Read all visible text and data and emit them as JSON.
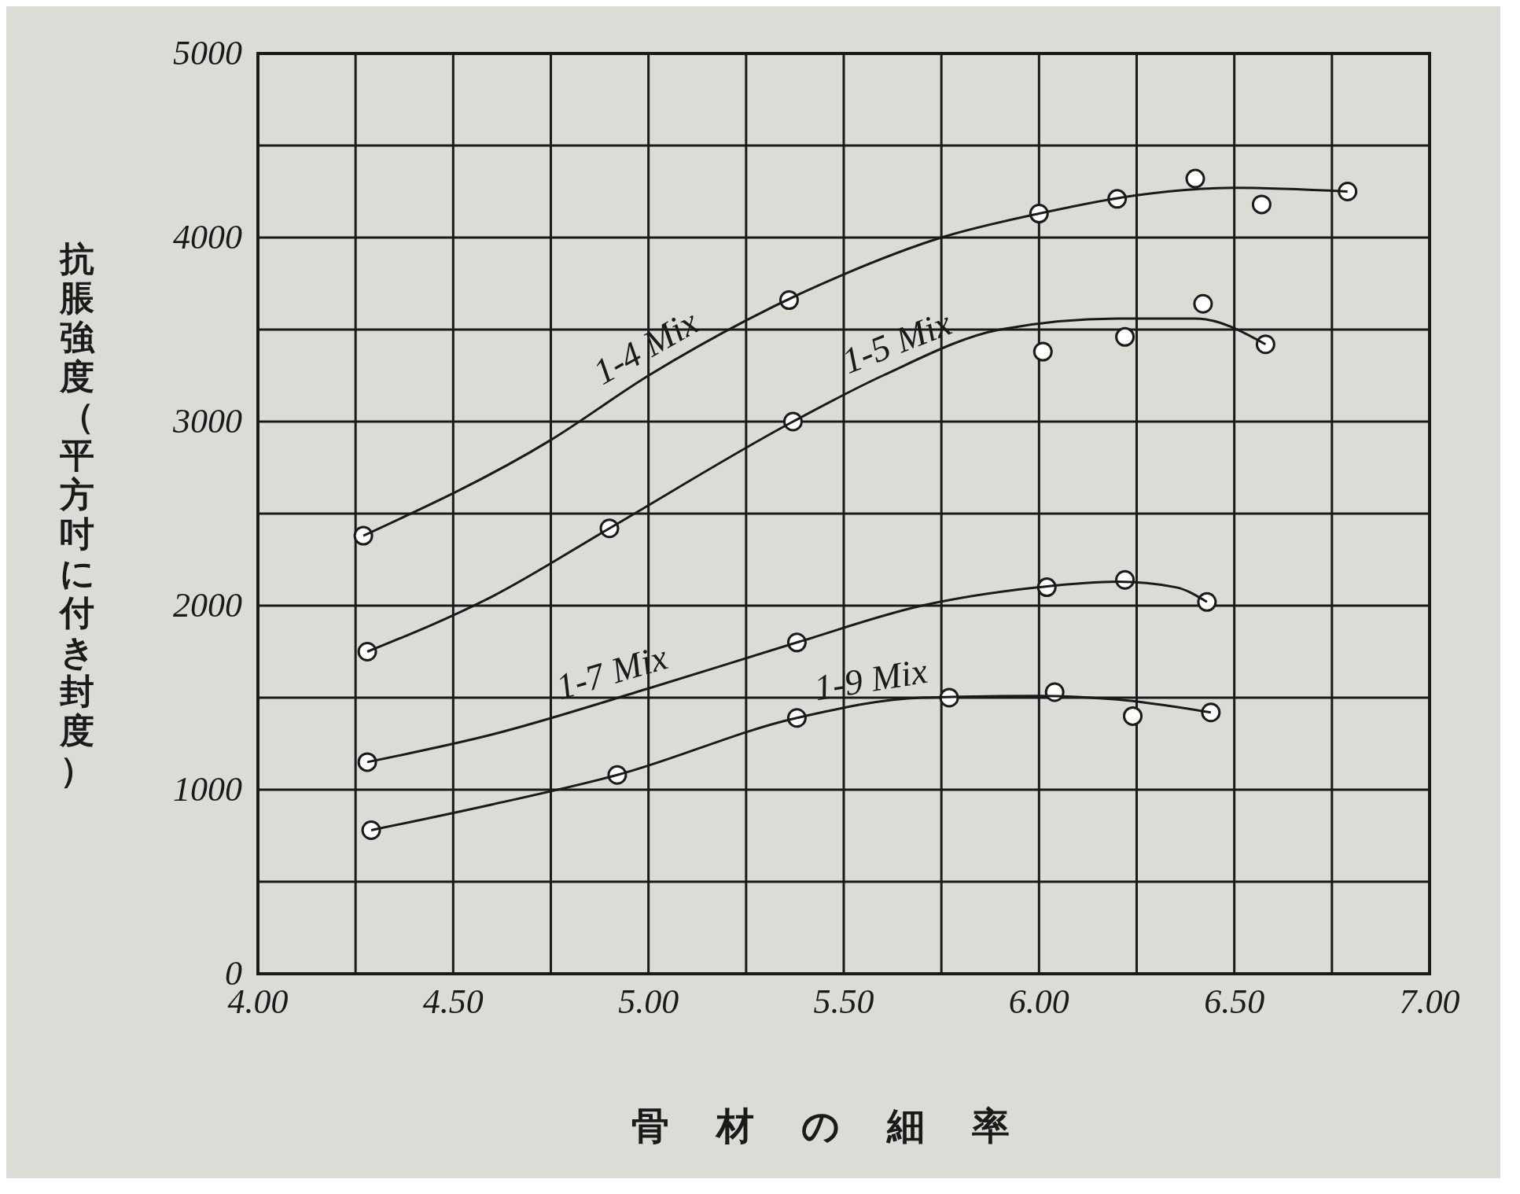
{
  "chart_data": {
    "type": "scatter",
    "xlabel": "骨材の細率",
    "ylabel": "抗脹強度（平方吋に付き封度）",
    "xlim": [
      4,
      7
    ],
    "ylim": [
      0,
      5000
    ],
    "xticks": [
      {
        "value": 4,
        "label": "4.00"
      },
      {
        "value": 4.25,
        "label": null
      },
      {
        "value": 4.5,
        "label": "4.50"
      },
      {
        "value": 4.75,
        "label": null
      },
      {
        "value": 5,
        "label": "5.00"
      },
      {
        "value": 5.25,
        "label": null
      },
      {
        "value": 5.5,
        "label": "5.50"
      },
      {
        "value": 5.75,
        "label": null
      },
      {
        "value": 6,
        "label": "6.00"
      },
      {
        "value": 6.25,
        "label": null
      },
      {
        "value": 6.5,
        "label": "6.50"
      },
      {
        "value": 6.75,
        "label": null
      },
      {
        "value": 7,
        "label": "7.00"
      }
    ],
    "yticks": [
      0,
      {
        "value": 500,
        "label": null
      },
      1000,
      {
        "value": 1500,
        "label": null
      },
      2000,
      {
        "value": 2500,
        "label": null
      },
      3000,
      {
        "value": 3500,
        "label": null
      },
      4000,
      {
        "value": 4500,
        "label": null
      },
      5000
    ],
    "grid": true,
    "legend": false,
    "marker": "circle",
    "series": [
      {
        "color": "#1a1a1a",
        "x": [
          4.27,
          5.36,
          6.0,
          6.2,
          6.4,
          6.57,
          6.79
        ],
        "values": [
          2380,
          3660,
          4130,
          4210,
          4320,
          4180,
          4250
        ]
      },
      {
        "color": "#1a1a1a",
        "x": [
          4.28,
          4.9,
          5.37,
          6.01,
          6.22,
          6.42,
          6.58
        ],
        "values": [
          1750,
          2420,
          3000,
          3380,
          3460,
          3640,
          3420
        ]
      },
      {
        "color": "#1a1a1a",
        "x": [
          4.28,
          5.38,
          6.02,
          6.22,
          6.43
        ],
        "values": [
          1150,
          1800,
          2100,
          2140,
          2020
        ]
      },
      {
        "color": "#1a1a1a",
        "x": [
          4.29,
          4.92,
          5.38,
          5.77,
          6.04,
          6.24,
          6.44
        ],
        "values": [
          780,
          1080,
          1390,
          1500,
          1530,
          1400,
          1420
        ]
      },
      {
        "type": "line",
        "name": "1-4 Mix",
        "color": "#1a1a1a",
        "marker": "none",
        "line_style": "solid",
        "x": [
          4.27,
          4.75,
          5.0,
          5.25,
          5.5,
          5.75,
          6.0,
          6.25,
          6.5,
          6.79
        ],
        "values": [
          2380,
          2900,
          3250,
          3550,
          3800,
          4000,
          4130,
          4230,
          4270,
          4250
        ]
      },
      {
        "type": "line",
        "name": "1-5 Mix",
        "color": "#1a1a1a",
        "marker": "none",
        "line_style": "solid",
        "x": [
          4.28,
          4.6,
          4.9,
          5.37,
          5.6,
          5.9,
          6.2,
          6.4,
          6.58
        ],
        "values": [
          1750,
          2050,
          2420,
          3000,
          3250,
          3500,
          3560,
          3560,
          3420
        ]
      },
      {
        "type": "line",
        "name": "1-7 Mix",
        "color": "#1a1a1a",
        "marker": "none",
        "line_style": "solid",
        "x": [
          4.28,
          4.6,
          5.0,
          5.38,
          5.7,
          6.0,
          6.2,
          6.35,
          6.43
        ],
        "values": [
          1150,
          1300,
          1550,
          1800,
          2000,
          2100,
          2130,
          2100,
          2020
        ]
      },
      {
        "type": "line",
        "name": "1-9 Mix",
        "color": "#1a1a1a",
        "marker": "none",
        "line_style": "solid",
        "x": [
          4.29,
          4.6,
          4.92,
          5.38,
          5.7,
          6.0,
          6.2,
          6.44
        ],
        "values": [
          780,
          920,
          1080,
          1390,
          1500,
          1510,
          1490,
          1420
        ]
      }
    ]
  }
}
